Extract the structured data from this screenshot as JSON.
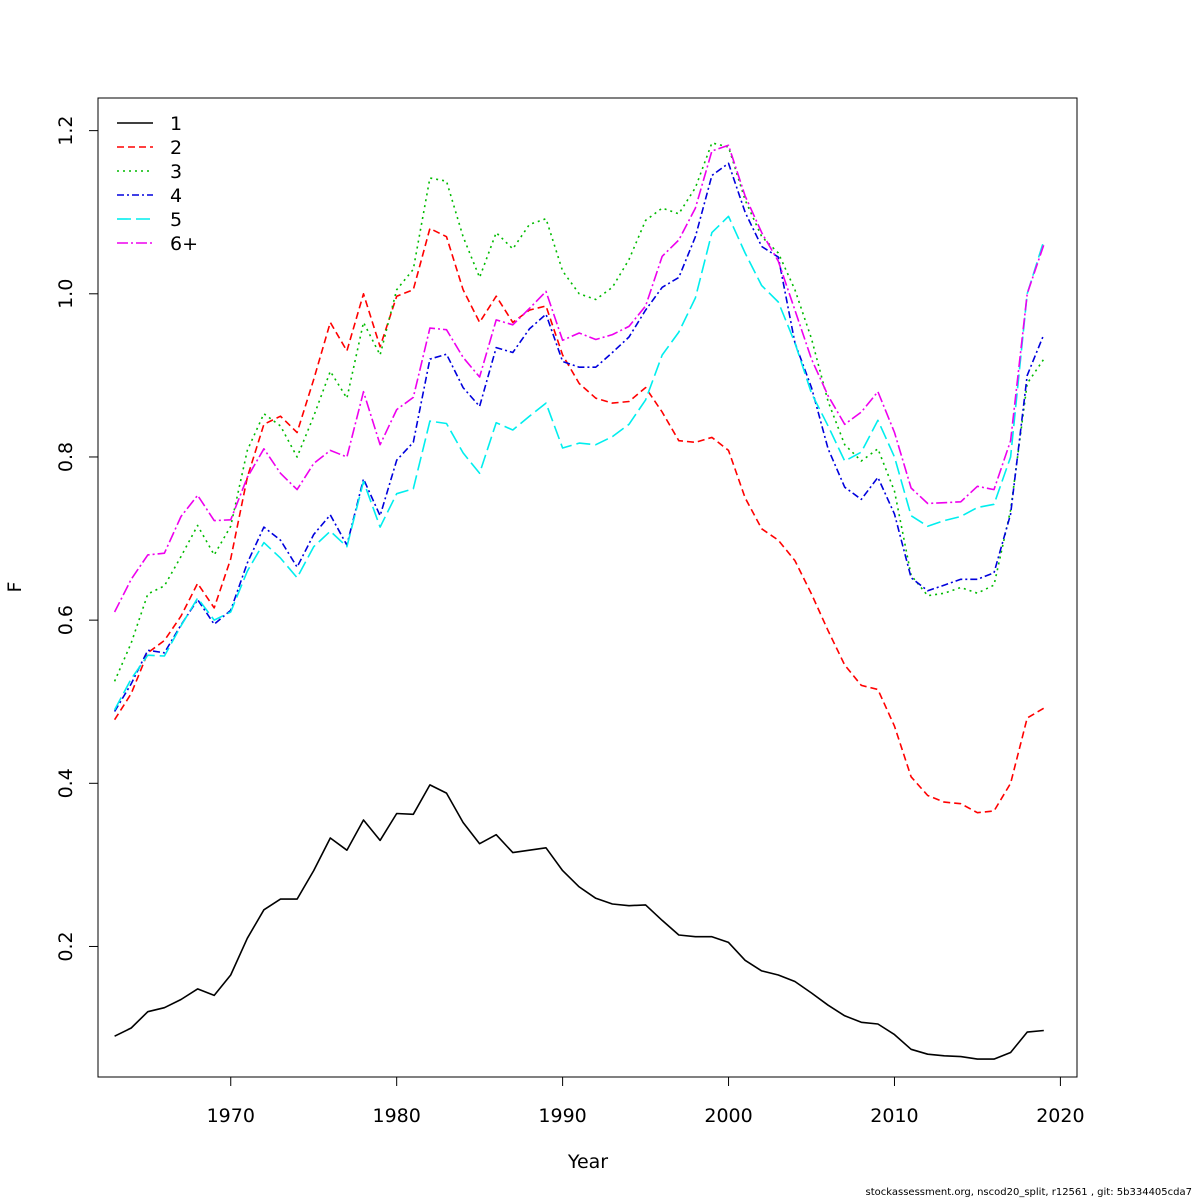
{
  "chart_data": {
    "type": "line",
    "xlabel": "Year",
    "ylabel": "F",
    "xlim": [
      1962,
      2021
    ],
    "ylim": [
      0.04,
      1.24
    ],
    "x_ticks": [
      1970,
      1980,
      1990,
      2000,
      2010,
      2020
    ],
    "y_ticks": [
      0.2,
      0.4,
      0.6,
      0.8,
      1.0,
      1.2
    ],
    "y_tick_labels": [
      "0.2",
      "0.4",
      "0.6",
      "0.8",
      "1.0",
      "1.2"
    ],
    "grid": false,
    "legend_position": "top-left",
    "x": [
      1963,
      1964,
      1965,
      1966,
      1967,
      1968,
      1969,
      1970,
      1971,
      1972,
      1973,
      1974,
      1975,
      1976,
      1977,
      1978,
      1979,
      1980,
      1981,
      1982,
      1983,
      1984,
      1985,
      1986,
      1987,
      1988,
      1989,
      1990,
      1991,
      1992,
      1993,
      1994,
      1995,
      1996,
      1997,
      1998,
      1999,
      2000,
      2001,
      2002,
      2003,
      2004,
      2005,
      2006,
      2007,
      2008,
      2009,
      2010,
      2011,
      2012,
      2013,
      2014,
      2015,
      2016,
      2017,
      2018,
      2019
    ],
    "series": [
      {
        "name": "1",
        "color": "#000000",
        "dash": "",
        "values": [
          0.09,
          0.1,
          0.12,
          0.125,
          0.135,
          0.148,
          0.14,
          0.165,
          0.21,
          0.245,
          0.258,
          0.258,
          0.293,
          0.333,
          0.318,
          0.355,
          0.33,
          0.363,
          0.362,
          0.398,
          0.388,
          0.352,
          0.326,
          0.337,
          0.315,
          0.318,
          0.321,
          0.293,
          0.273,
          0.259,
          0.252,
          0.25,
          0.251,
          0.232,
          0.214,
          0.212,
          0.212,
          0.205,
          0.183,
          0.17,
          0.165,
          0.157,
          0.143,
          0.128,
          0.115,
          0.107,
          0.105,
          0.092,
          0.074,
          0.068,
          0.066,
          0.065,
          0.062,
          0.062,
          0.07,
          0.095,
          0.097
        ]
      },
      {
        "name": "2",
        "color": "#ff0000",
        "dash": "7,4",
        "values": [
          0.478,
          0.51,
          0.56,
          0.575,
          0.605,
          0.645,
          0.615,
          0.675,
          0.775,
          0.84,
          0.85,
          0.83,
          0.895,
          0.965,
          0.93,
          1.0,
          0.935,
          0.997,
          1.005,
          1.08,
          1.07,
          1.005,
          0.965,
          0.997,
          0.965,
          0.98,
          0.985,
          0.925,
          0.89,
          0.872,
          0.866,
          0.868,
          0.885,
          0.855,
          0.82,
          0.818,
          0.824,
          0.808,
          0.75,
          0.712,
          0.698,
          0.673,
          0.632,
          0.587,
          0.545,
          0.52,
          0.515,
          0.47,
          0.408,
          0.385,
          0.377,
          0.375,
          0.364,
          0.366,
          0.4,
          0.48,
          0.492
        ]
      },
      {
        "name": "3",
        "color": "#00bb00",
        "dash": "2,4",
        "values": [
          0.525,
          0.572,
          0.632,
          0.642,
          0.678,
          0.716,
          0.68,
          0.715,
          0.808,
          0.853,
          0.838,
          0.8,
          0.85,
          0.905,
          0.872,
          0.965,
          0.925,
          1.005,
          1.03,
          1.142,
          1.138,
          1.07,
          1.02,
          1.075,
          1.055,
          1.085,
          1.092,
          1.028,
          1.0,
          0.993,
          1.008,
          1.042,
          1.09,
          1.105,
          1.098,
          1.13,
          1.185,
          1.18,
          1.115,
          1.07,
          1.05,
          1.005,
          0.945,
          0.868,
          0.815,
          0.795,
          0.81,
          0.758,
          0.655,
          0.63,
          0.633,
          0.64,
          0.633,
          0.643,
          0.735,
          0.89,
          0.92
        ]
      },
      {
        "name": "4",
        "color": "#0000dd",
        "dash": "7,3,2,3",
        "values": [
          0.488,
          0.522,
          0.563,
          0.56,
          0.594,
          0.625,
          0.595,
          0.612,
          0.67,
          0.714,
          0.698,
          0.665,
          0.705,
          0.729,
          0.692,
          0.773,
          0.728,
          0.796,
          0.818,
          0.92,
          0.926,
          0.885,
          0.862,
          0.934,
          0.928,
          0.957,
          0.975,
          0.917,
          0.91,
          0.91,
          0.928,
          0.947,
          0.98,
          1.008,
          1.02,
          1.07,
          1.145,
          1.16,
          1.1,
          1.058,
          1.045,
          0.94,
          0.885,
          0.81,
          0.763,
          0.748,
          0.775,
          0.73,
          0.652,
          0.636,
          0.643,
          0.65,
          0.65,
          0.658,
          0.73,
          0.9,
          0.95
        ]
      },
      {
        "name": "5",
        "color": "#00eeee",
        "dash": "14,5",
        "values": [
          0.49,
          0.528,
          0.557,
          0.556,
          0.593,
          0.627,
          0.6,
          0.61,
          0.66,
          0.695,
          0.676,
          0.652,
          0.69,
          0.709,
          0.69,
          0.77,
          0.714,
          0.755,
          0.761,
          0.844,
          0.841,
          0.805,
          0.78,
          0.842,
          0.833,
          0.85,
          0.866,
          0.811,
          0.817,
          0.815,
          0.825,
          0.84,
          0.87,
          0.925,
          0.953,
          0.995,
          1.075,
          1.095,
          1.05,
          1.01,
          0.99,
          0.94,
          0.878,
          0.838,
          0.795,
          0.806,
          0.845,
          0.8,
          0.728,
          0.715,
          0.722,
          0.727,
          0.738,
          0.742,
          0.8,
          1.0,
          1.065
        ]
      },
      {
        "name": "6+",
        "color": "#ee00ee",
        "dash": "11,3,2,3",
        "values": [
          0.61,
          0.65,
          0.68,
          0.682,
          0.727,
          0.753,
          0.722,
          0.723,
          0.775,
          0.81,
          0.78,
          0.76,
          0.792,
          0.808,
          0.8,
          0.88,
          0.815,
          0.858,
          0.873,
          0.958,
          0.956,
          0.922,
          0.898,
          0.968,
          0.962,
          0.982,
          1.003,
          0.943,
          0.952,
          0.944,
          0.95,
          0.96,
          0.985,
          1.046,
          1.066,
          1.105,
          1.175,
          1.182,
          1.12,
          1.075,
          1.04,
          0.98,
          0.92,
          0.875,
          0.84,
          0.855,
          0.88,
          0.83,
          0.762,
          0.743,
          0.744,
          0.745,
          0.764,
          0.76,
          0.82,
          1.0,
          1.06
        ]
      }
    ]
  },
  "footer": {
    "text": "stockassessment.org, nscod20_split, r12561 , git: 5b334405cda7"
  }
}
